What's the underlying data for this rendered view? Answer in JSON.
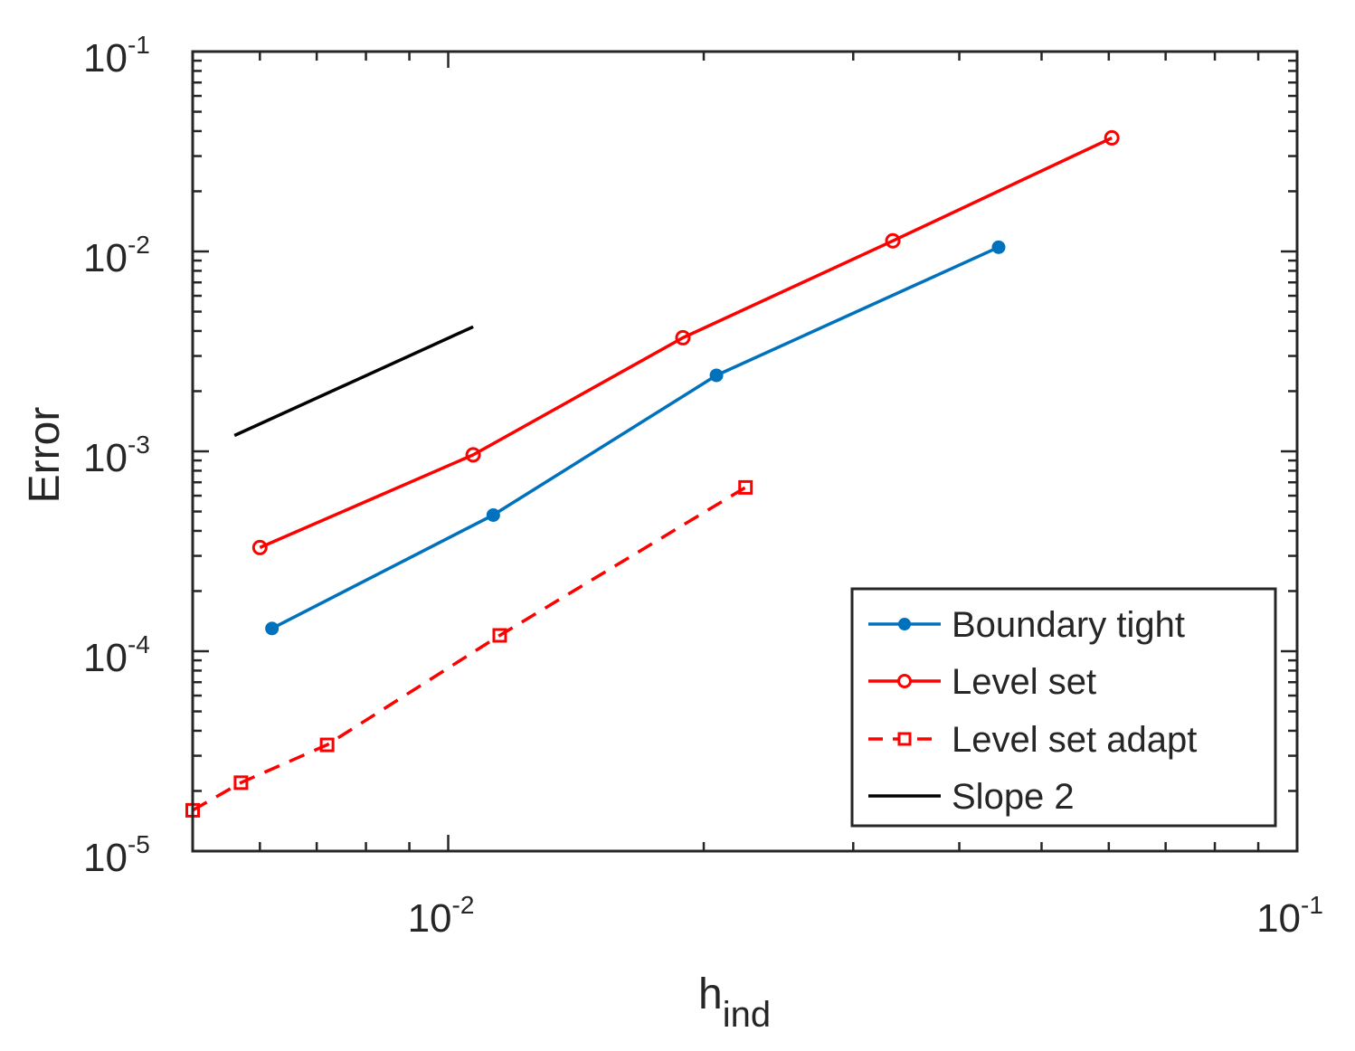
{
  "chart_data": {
    "type": "line",
    "xscale": "log",
    "yscale": "log",
    "xlim": [
      0.005,
      0.1
    ],
    "ylim": [
      1e-05,
      0.1
    ],
    "xlabel": {
      "main": "h",
      "subscript": "ind"
    },
    "ylabel": "Error",
    "x_ticks": [
      {
        "value": 0.01,
        "base": "10",
        "exponent": "-2"
      },
      {
        "value": 0.1,
        "base": "10",
        "exponent": "-1"
      }
    ],
    "y_ticks": [
      {
        "value": 1e-05,
        "base": "10",
        "exponent": "-5"
      },
      {
        "value": 0.0001,
        "base": "10",
        "exponent": "-4"
      },
      {
        "value": 0.001,
        "base": "10",
        "exponent": "-3"
      },
      {
        "value": 0.01,
        "base": "10",
        "exponent": "-2"
      },
      {
        "value": 0.1,
        "base": "10",
        "exponent": "-1"
      }
    ],
    "grid": false,
    "legend_position": "bottom-right",
    "series": [
      {
        "name": "Boundary tight",
        "color": "#0072BD",
        "style": "solid",
        "marker": "filled-circle",
        "x": [
          0.0062,
          0.0113,
          0.0207,
          0.0445
        ],
        "y": [
          0.00013,
          0.00048,
          0.0024,
          0.0105
        ]
      },
      {
        "name": "Level set",
        "color": "#FF0000",
        "style": "solid",
        "marker": "open-circle",
        "x": [
          0.006,
          0.0107,
          0.0189,
          0.0334,
          0.0605
        ],
        "y": [
          0.00033,
          0.00096,
          0.0037,
          0.0113,
          0.037
        ]
      },
      {
        "name": "Level set adapt",
        "color": "#FF0000",
        "style": "dashed",
        "marker": "open-square",
        "x": [
          0.005,
          0.0057,
          0.0072,
          0.0115,
          0.0224
        ],
        "y": [
          1.6e-05,
          2.2e-05,
          3.4e-05,
          0.00012,
          0.00066
        ]
      },
      {
        "name": "Slope 2",
        "color": "#000000",
        "style": "solid",
        "marker": "none",
        "x": [
          0.0056,
          0.0107
        ],
        "y": [
          0.0012,
          0.0042
        ]
      }
    ]
  }
}
